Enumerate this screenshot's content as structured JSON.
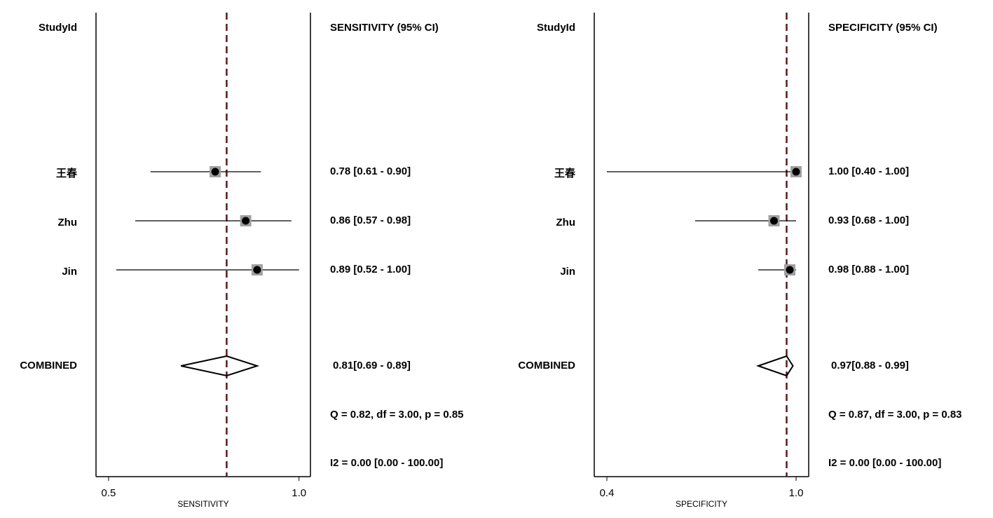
{
  "chart_data": [
    {
      "type": "forest",
      "study_header": "StudyId",
      "ci_header": "SENSITIVITY (95% CI)",
      "x_label": "SENSITIVITY",
      "categories": [
        "王春",
        "Zhu",
        "Jin"
      ],
      "values": [
        0.78,
        0.86,
        0.89
      ],
      "lower": [
        0.61,
        0.57,
        0.52
      ],
      "upper": [
        0.9,
        0.98,
        1.0
      ],
      "value_labels": [
        "0.78 [0.61 - 0.90]",
        "0.86 [0.57 - 0.98]",
        "0.89 [0.52 - 1.00]"
      ],
      "combined": {
        "name": "COMBINED",
        "value": 0.81,
        "lower": 0.69,
        "upper": 0.89,
        "value_label": "0.81[0.69 - 0.89]"
      },
      "annotations": [
        "Q =  0.82, df = 3.00, p =  0.85",
        "I2 = 0.00 [0.00 - 100.00]"
      ],
      "xlim": [
        0.467,
        1.03
      ],
      "xticks": [
        0.5,
        {
          "value": 1,
          "label": "1.0"
        }
      ],
      "color": "#000000",
      "marker_color": "#a0a0a0",
      "ref_color": "#5a1a1a"
    },
    {
      "type": "forest",
      "study_header": "StudyId",
      "ci_header": "SPECIFICITY (95% CI)",
      "x_label": "SPECIFICITY",
      "categories": [
        "王春",
        "Zhu",
        "Jin"
      ],
      "values": [
        1.0,
        0.93,
        0.98
      ],
      "lower": [
        0.4,
        0.68,
        0.88
      ],
      "upper": [
        1.0,
        1.0,
        1.0
      ],
      "value_labels": [
        "1.00 [0.40 - 1.00]",
        "0.93 [0.68 - 1.00]",
        "0.98 [0.88 - 1.00]"
      ],
      "combined": {
        "name": "COMBINED",
        "value": 0.97,
        "lower": 0.88,
        "upper": 0.99,
        "value_label": "0.97[0.88 - 0.99]"
      },
      "annotations": [
        "Q =  0.87, df = 3.00, p =  0.83",
        "I2 = 0.00 [0.00 - 100.00]"
      ],
      "xlim": [
        0.36,
        1.04
      ],
      "xticks": [
        0.4,
        {
          "value": 1,
          "label": "1.0"
        }
      ],
      "color": "#000000",
      "marker_color": "#a0a0a0",
      "ref_color": "#5a1a1a"
    }
  ]
}
